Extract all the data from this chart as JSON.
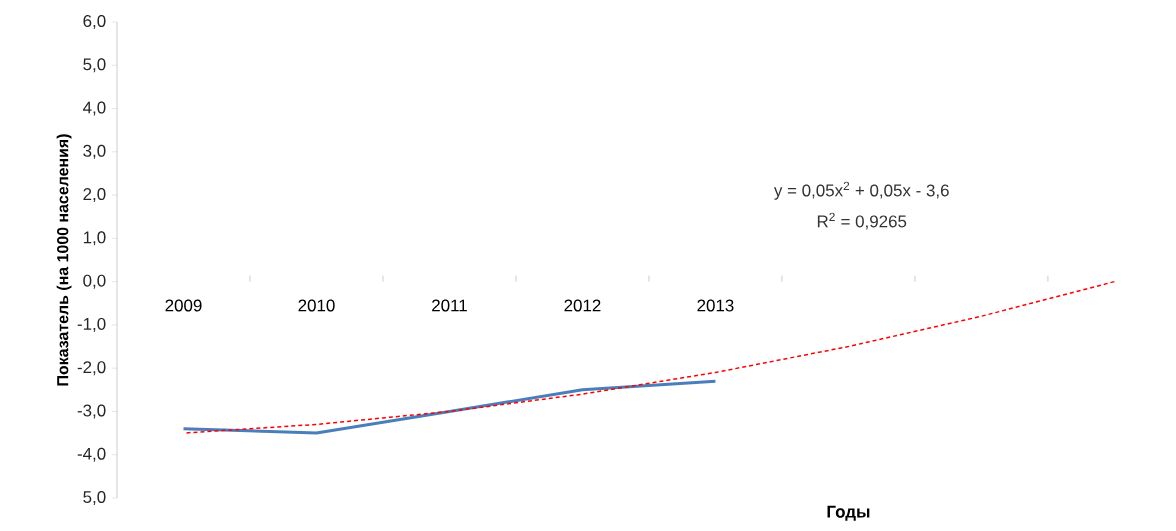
{
  "chart_data": {
    "type": "line",
    "categories": [
      "2009",
      "2010",
      "2011",
      "2012",
      "2013",
      null,
      null,
      null
    ],
    "series": [
      {
        "color": "#4a7ebb",
        "line_style": "solid",
        "values": [
          -3.4,
          -3.5,
          -3.0,
          -2.5,
          -2.3,
          null,
          null,
          null
        ]
      },
      {
        "type": "line",
        "color": "#ff0000",
        "line_style": "dashed",
        "values": [
          -3.5,
          -3.3,
          -3.0,
          -2.6,
          -2.1,
          -1.5,
          -0.8,
          0.0
        ]
      }
    ],
    "ylim": [
      -5,
      6
    ],
    "yticks": [
      {
        "value": 6,
        "label": "6,0"
      },
      {
        "value": 5,
        "label": "5,0"
      },
      {
        "value": 4,
        "label": "4,0"
      },
      {
        "value": 3,
        "label": "3,0"
      },
      {
        "value": 2,
        "label": "2,0"
      },
      {
        "value": 1,
        "label": "1,0"
      },
      {
        "value": 0,
        "label": "0,0"
      },
      {
        "value": -1,
        "label": "-1,0"
      },
      {
        "value": -2,
        "label": "-2,0"
      },
      {
        "value": -3,
        "label": "-3,0"
      },
      {
        "value": -4,
        "label": "-4,0"
      },
      {
        "value": -5,
        "label": "5,0"
      }
    ],
    "xlabel": "Годы",
    "ylabel": "Показатель (на 1000 населения)",
    "annotations": [
      "y = 0,05x$^{2}$ + 0,05x - 3,6",
      "R$^{2}$ = 0,9265"
    ]
  }
}
